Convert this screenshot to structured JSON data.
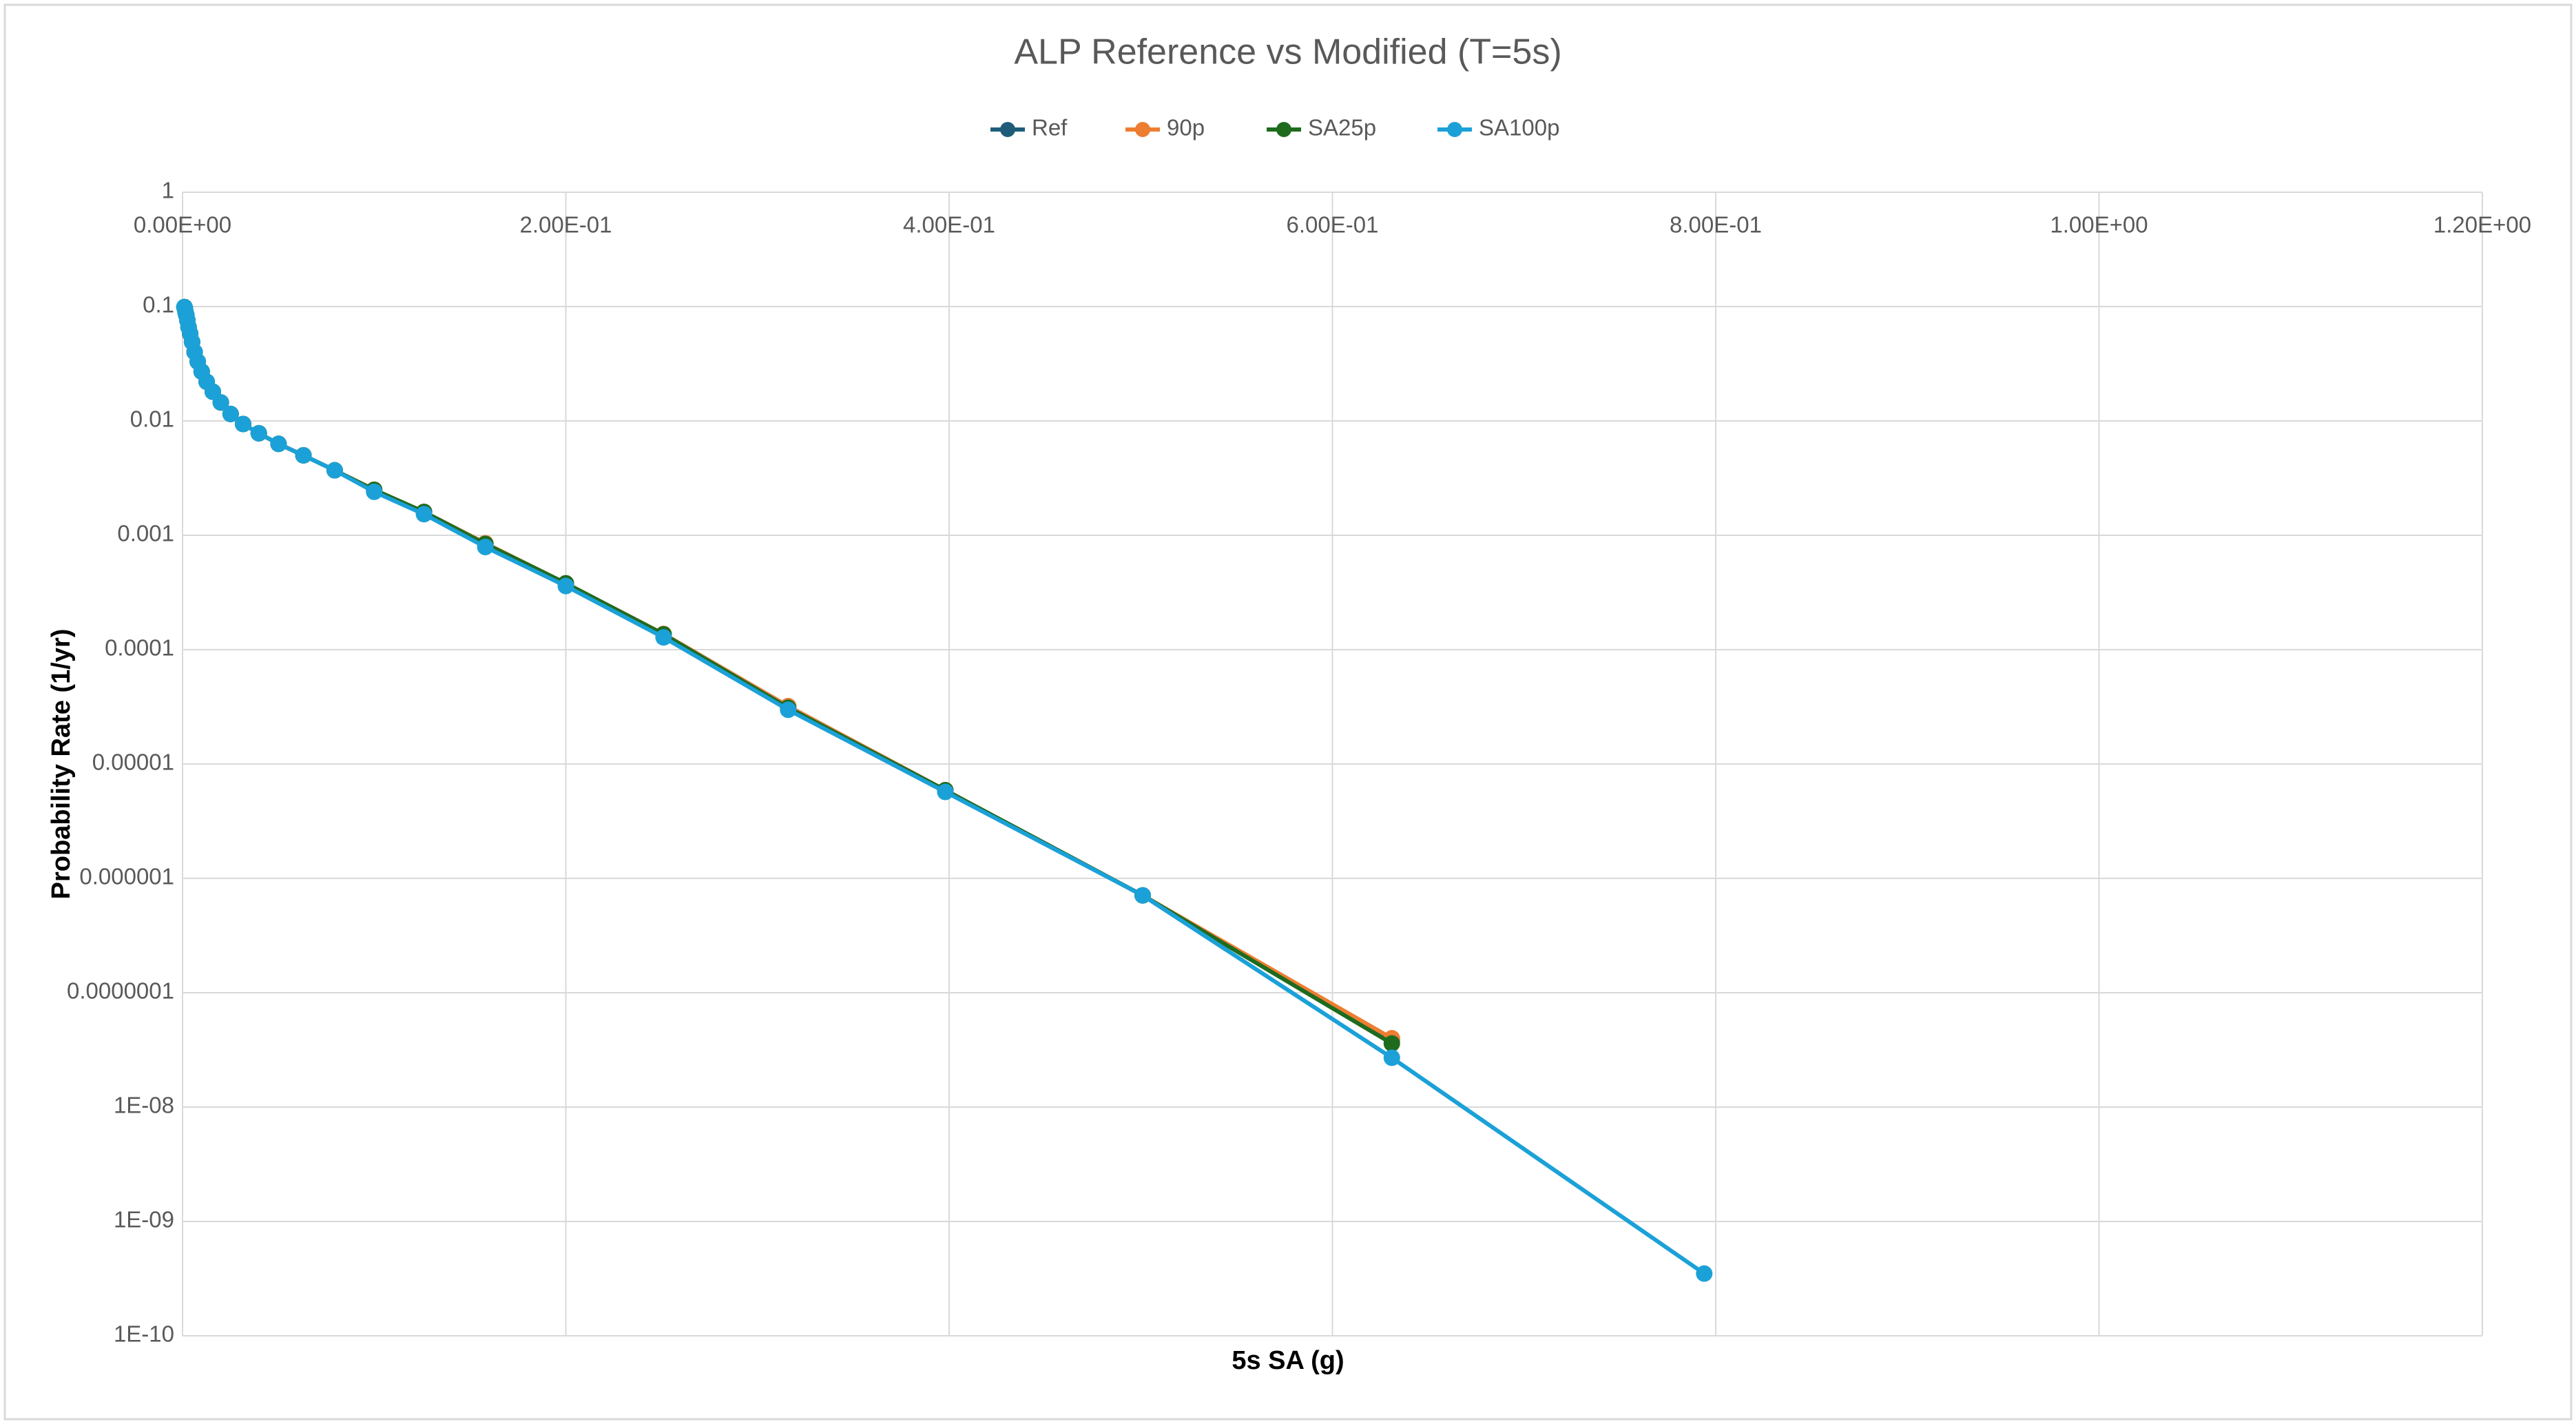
{
  "chart_data": {
    "type": "line",
    "title": "ALP Reference vs Modified (T=5s)",
    "x_label": "5s SA (g)",
    "y_label": "Probability Rate (1/yr)",
    "x": [
      0.001,
      0.00126,
      0.00158,
      0.002,
      0.00251,
      0.00316,
      0.00398,
      0.00501,
      0.00631,
      0.00794,
      0.01,
      0.0126,
      0.0158,
      0.02,
      0.0251,
      0.0316,
      0.0398,
      0.0501,
      0.0631,
      0.0794,
      0.1,
      0.126,
      0.158,
      0.2,
      0.251,
      0.316,
      0.398,
      0.501,
      0.631,
      0.794
    ],
    "series": [
      {
        "name": "Ref",
        "color": "#1f5c7a",
        "values": [
          0.099,
          0.096,
          0.089,
          0.084,
          0.076,
          0.066,
          0.058,
          0.049,
          0.04,
          0.033,
          0.027,
          0.022,
          0.018,
          0.0145,
          0.0115,
          0.0094,
          0.0078,
          0.0063,
          0.005,
          0.0037,
          0.0025,
          0.0016,
          0.00085,
          0.00038,
          0.000137,
          3.2e-05,
          5.9e-06,
          7.1e-07,
          3.9e-08,
          null
        ]
      },
      {
        "name": "90p",
        "color": "#ed7d31",
        "values": [
          0.099,
          0.096,
          0.089,
          0.084,
          0.076,
          0.066,
          0.058,
          0.049,
          0.04,
          0.033,
          0.027,
          0.022,
          0.018,
          0.0145,
          0.0115,
          0.0094,
          0.0078,
          0.0063,
          0.005,
          0.0037,
          0.0025,
          0.0016,
          0.00085,
          0.00038,
          0.000137,
          3.2e-05,
          5.9e-06,
          7.1e-07,
          4e-08,
          null
        ]
      },
      {
        "name": "SA25p",
        "color": "#1e6b1e",
        "values": [
          0.099,
          0.096,
          0.089,
          0.084,
          0.076,
          0.066,
          0.058,
          0.049,
          0.04,
          0.033,
          0.027,
          0.022,
          0.018,
          0.0145,
          0.0115,
          0.0094,
          0.0078,
          0.0063,
          0.005,
          0.0037,
          0.0025,
          0.0016,
          0.00084,
          0.00038,
          0.000136,
          3.1e-05,
          5.9e-06,
          7.1e-07,
          3.6e-08,
          null
        ]
      },
      {
        "name": "SA100p",
        "color": "#1ba1d8",
        "values": [
          0.099,
          0.096,
          0.089,
          0.084,
          0.076,
          0.066,
          0.058,
          0.049,
          0.04,
          0.033,
          0.027,
          0.022,
          0.018,
          0.0145,
          0.0115,
          0.0094,
          0.0078,
          0.0063,
          0.005,
          0.0037,
          0.0024,
          0.00153,
          0.00079,
          0.00036,
          0.000128,
          2.98e-05,
          5.7e-06,
          7.1e-07,
          2.7e-08,
          3.5e-10
        ]
      }
    ],
    "xlim": [
      0,
      1.2
    ],
    "xticks": [
      {
        "value": 0,
        "label": "0.00E+00"
      },
      {
        "value": 0.2,
        "label": "2.00E-01"
      },
      {
        "value": 0.4,
        "label": "4.00E-01"
      },
      {
        "value": 0.6,
        "label": "6.00E-01"
      },
      {
        "value": 0.8,
        "label": "8.00E-01"
      },
      {
        "value": 1,
        "label": "1.00E+00"
      },
      {
        "value": 1.2,
        "label": "1.20E+00"
      }
    ],
    "ylim": [
      1e-10,
      1
    ],
    "y_log": true,
    "yticks": [
      1,
      0.1,
      0.01,
      0.001,
      0.0001,
      {
        "value": 1e-05,
        "label": "0.00001"
      },
      {
        "value": 1e-06,
        "label": "0.000001"
      },
      {
        "value": 1e-07,
        "label": "0.0000001"
      },
      {
        "value": 1e-08,
        "label": "1E-08"
      },
      {
        "value": 1e-09,
        "label": "1E-09"
      },
      {
        "value": 1e-10,
        "label": "1E-10"
      }
    ],
    "grid": true,
    "legend": "top"
  }
}
